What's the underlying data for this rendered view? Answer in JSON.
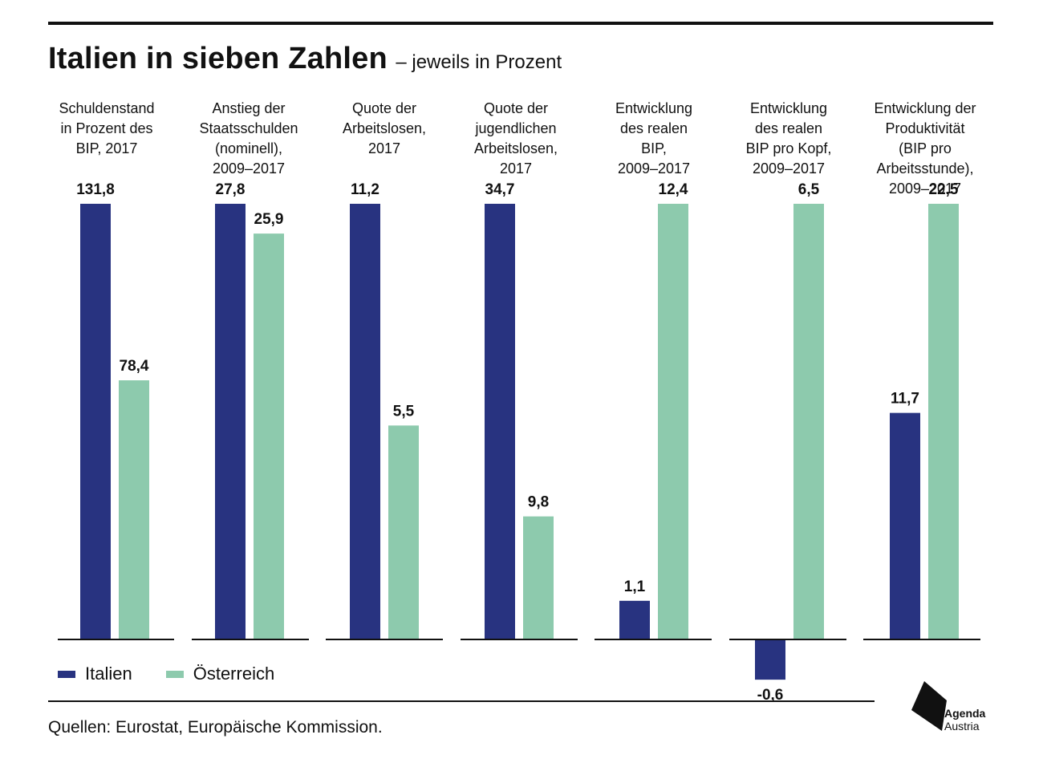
{
  "header": {
    "title": "Italien in sieben Zahlen",
    "subtitle": "– jeweils in Prozent"
  },
  "colors": {
    "italien": "#283380",
    "oesterreich": "#8dcaad",
    "axis": "#111111"
  },
  "legend": {
    "italien": "Italien",
    "oesterreich": "Österreich"
  },
  "source": "Quellen: Eurostat, Europäische Kommission.",
  "logo": {
    "line1": "Agenda",
    "line2": "Austria"
  },
  "chart_data": {
    "type": "bar",
    "title": "Italien in sieben Zahlen",
    "subtitle": "– jeweils in Prozent",
    "categories": [
      "Schuldenstand\nin Prozent des\nBIP, 2017",
      "Anstieg der\nStaatsschulden\n(nominell),\n2009–2017",
      "Quote der\nArbeitslosen,\n2017",
      "Quote der\njugendlichen\nArbeitslosen,\n2017",
      "Entwicklung\ndes realen\nBIP,\n2009–2017",
      "Entwicklung\ndes realen\nBIP pro Kopf,\n2009–2017",
      "Entwicklung der\nProduktivität\n(BIP pro\nArbeitsstunde),\n2009–2017"
    ],
    "series": [
      {
        "name": "Italien",
        "values": [
          131.8,
          27.8,
          11.2,
          34.7,
          1.1,
          -0.6,
          11.7
        ],
        "labels": [
          "131,8",
          "27,8",
          "11,2",
          "34,7",
          "1,1",
          "-0,6",
          "11,7"
        ]
      },
      {
        "name": "Österreich",
        "values": [
          78.4,
          25.9,
          5.5,
          9.8,
          12.4,
          6.5,
          22.5
        ],
        "labels": [
          "78,4",
          "25,9",
          "5,5",
          "9,8",
          "12,4",
          "6,5",
          "22,5"
        ]
      }
    ],
    "scale_note": "each category panel is independently scaled",
    "grid": false,
    "legend_position": "bottom-left"
  }
}
